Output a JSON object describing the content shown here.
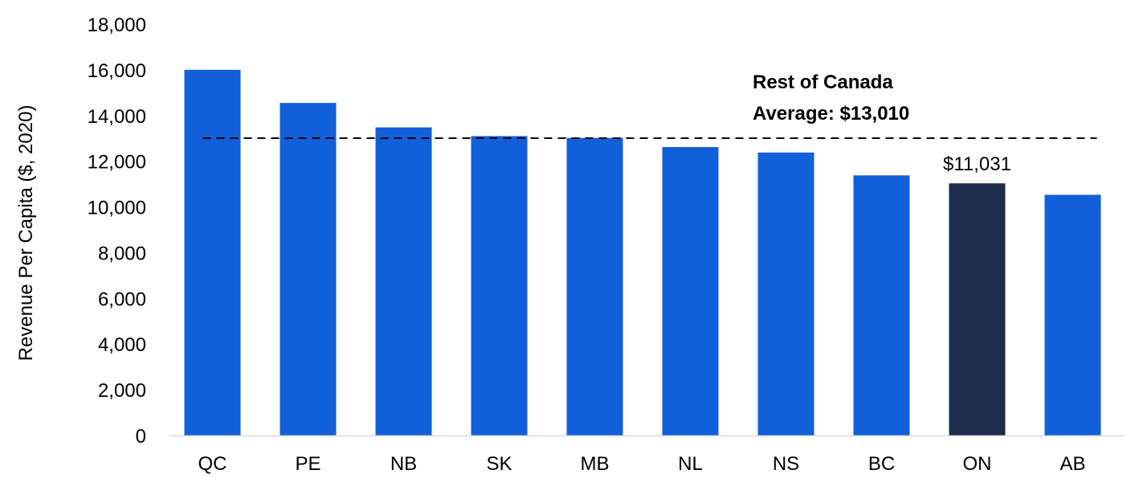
{
  "chart_data": {
    "type": "bar",
    "ylabel": "Revenue Per Capita ($, 2020)",
    "ylim": [
      0,
      18000
    ],
    "yticks": [
      0,
      2000,
      4000,
      6000,
      8000,
      10000,
      12000,
      14000,
      16000,
      18000
    ],
    "ytick_labels": [
      "0",
      "2,000",
      "4,000",
      "6,000",
      "8,000",
      "10,000",
      "12,000",
      "14,000",
      "16,000",
      "18,000"
    ],
    "grid": false,
    "categories": [
      "QC",
      "PE",
      "NB",
      "SK",
      "MB",
      "NL",
      "NS",
      "BC",
      "ON",
      "AB"
    ],
    "values": [
      16000,
      14550,
      13480,
      13100,
      13020,
      12620,
      12380,
      11380,
      11031,
      10530
    ],
    "highlight_category": "ON",
    "highlight_label": "$11,031",
    "reference_line": {
      "value": 13010,
      "label_lines": [
        "Rest of Canada",
        "Average: $13,010"
      ]
    },
    "colors": {
      "bar": "#1160D9",
      "highlight": "#1E2D4C",
      "reference_line": "#000000"
    }
  }
}
